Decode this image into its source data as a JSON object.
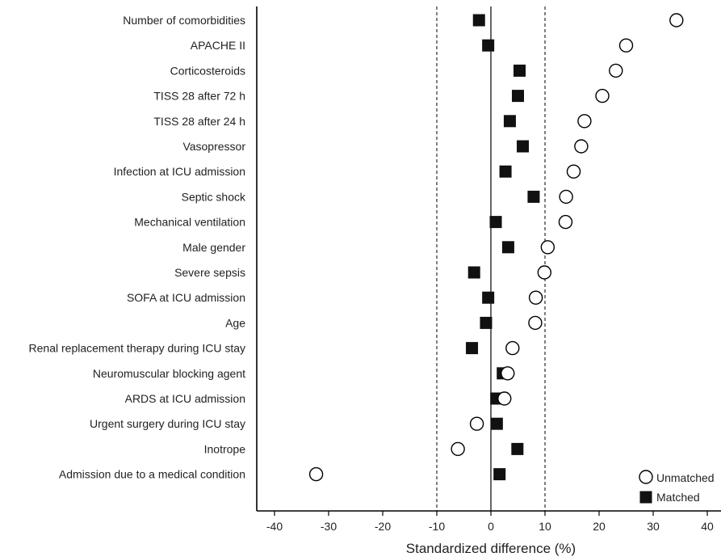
{
  "chart_data": {
    "type": "scatter",
    "xlabel": "Standardized difference (%)",
    "xlim": [
      -44,
      43
    ],
    "xticks": [
      -40,
      -30,
      -20,
      -10,
      0,
      10,
      20,
      30,
      40
    ],
    "reference_lines": [
      -10,
      10
    ],
    "zero_line": 0,
    "categories": [
      "Number of comorbidities",
      "APACHE II",
      "Corticosteroids",
      "TISS 28 after 72 h",
      "TISS 28 after 24 h",
      "Vasopressor",
      "Infection at ICU admission",
      "Septic shock",
      "Mechanical ventilation",
      "Male gender",
      "Severe sepsis",
      "SOFA at ICU admission",
      "Age",
      "Renal replacement therapy during ICU stay",
      "Neuromuscular blocking agent",
      "ARDS at ICU admission",
      "Urgent surgery during ICU stay",
      "Inotrope",
      "Admission due to a medical condition"
    ],
    "series": [
      {
        "name": "Unmatched",
        "marker": "open-circle",
        "values": [
          34.3,
          25.0,
          23.1,
          20.6,
          17.3,
          16.7,
          15.3,
          13.9,
          13.8,
          10.5,
          9.9,
          8.3,
          8.2,
          4.0,
          3.1,
          2.5,
          -2.6,
          -6.1,
          -32.3
        ]
      },
      {
        "name": "Matched",
        "marker": "filled-square",
        "values": [
          -2.2,
          -0.5,
          5.3,
          5.0,
          3.5,
          5.9,
          2.7,
          7.9,
          0.9,
          3.2,
          -3.1,
          -0.5,
          -0.9,
          -3.5,
          2.2,
          1.0,
          1.1,
          4.9,
          1.6
        ]
      }
    ],
    "legend_position": "bottom-right",
    "grid": false
  },
  "colors": {
    "axis": "#000000",
    "text": "#222222",
    "marker_fill_matched": "#111111",
    "marker_fill_unmatched": "#ffffff"
  }
}
